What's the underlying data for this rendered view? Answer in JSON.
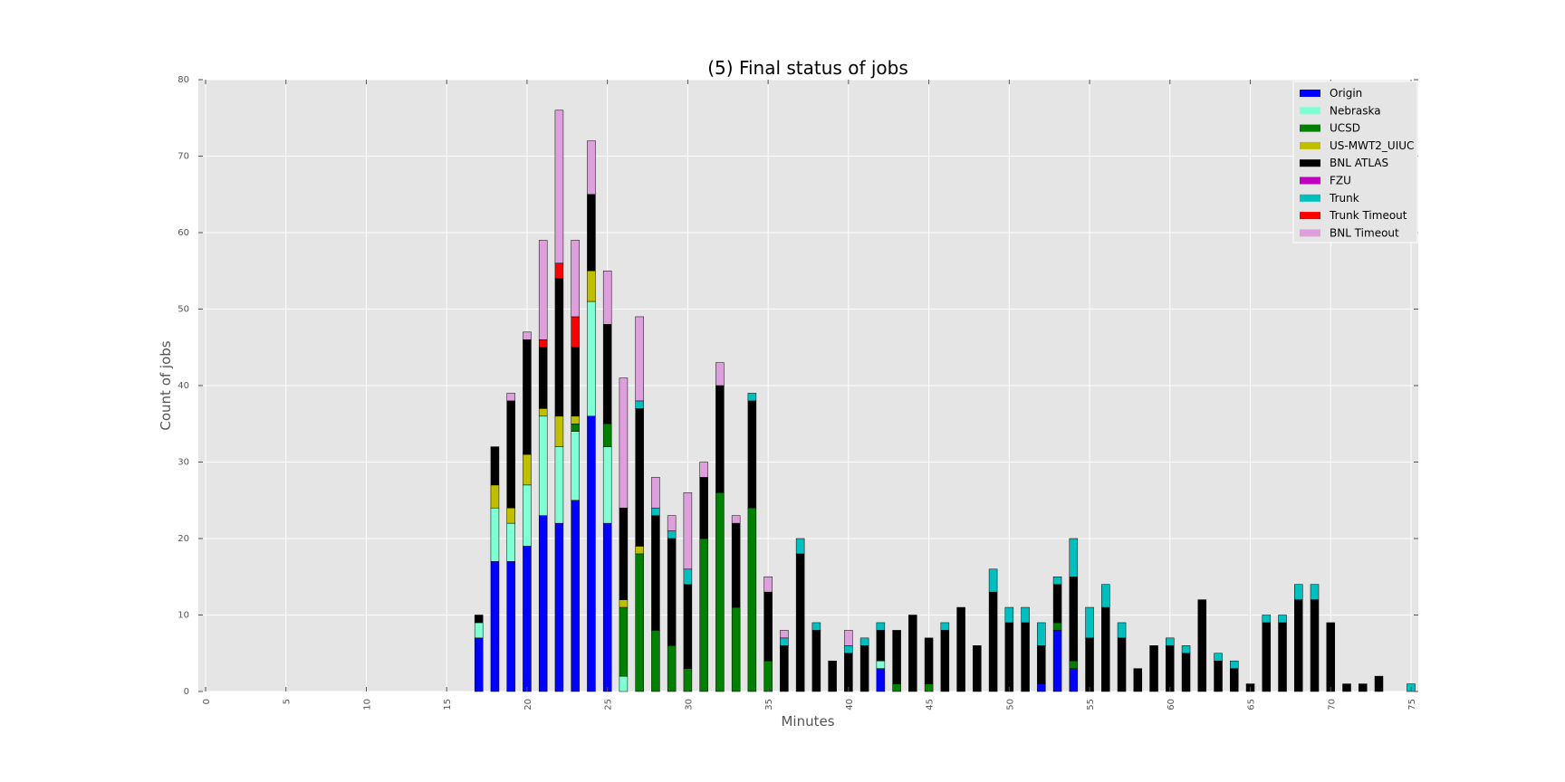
{
  "chart_data": {
    "type": "bar",
    "stacked": true,
    "title": "(5) Final status of jobs",
    "xlabel": "Minutes",
    "ylabel": "Count of jobs",
    "xlim": [
      0,
      75
    ],
    "ylim": [
      0,
      80
    ],
    "xticks": [
      0,
      5,
      10,
      15,
      20,
      25,
      30,
      35,
      40,
      45,
      50,
      55,
      60,
      65,
      70,
      75
    ],
    "yticks": [
      0,
      10,
      20,
      30,
      40,
      50,
      60,
      70,
      80
    ],
    "grid": true,
    "legend_position": "top-right",
    "colors": {
      "background": "#e5e5e5",
      "grid": "#ffffff"
    },
    "x": [
      17,
      18,
      19,
      20,
      21,
      22,
      23,
      24,
      25,
      26,
      27,
      28,
      29,
      30,
      31,
      32,
      33,
      34,
      35,
      36,
      37,
      38,
      39,
      40,
      41,
      42,
      43,
      44,
      45,
      46,
      47,
      48,
      49,
      50,
      51,
      52,
      53,
      54,
      55,
      56,
      57,
      58,
      59,
      60,
      61,
      62,
      63,
      64,
      65,
      66,
      67,
      68,
      69,
      70,
      71,
      72,
      73,
      75
    ],
    "series": [
      {
        "name": "Origin",
        "color": "#0000ff",
        "values": [
          7,
          17,
          17,
          19,
          23,
          22,
          25,
          36,
          22,
          0,
          0,
          0,
          0,
          0,
          0,
          0,
          0,
          0,
          0,
          0,
          0,
          0,
          0,
          0,
          0,
          3,
          0,
          0,
          0,
          0,
          0,
          0,
          0,
          0,
          0,
          1,
          8,
          3,
          0,
          0,
          0,
          0,
          0,
          0,
          0,
          0,
          0,
          0,
          0,
          0,
          0,
          0,
          0,
          0,
          0,
          0,
          0,
          0
        ]
      },
      {
        "name": "Nebraska",
        "color": "#7fffd4",
        "values": [
          2,
          7,
          5,
          8,
          13,
          10,
          9,
          15,
          10,
          2,
          0,
          0,
          0,
          0,
          0,
          0,
          0,
          0,
          0,
          0,
          0,
          0,
          0,
          0,
          0,
          1,
          0,
          0,
          0,
          0,
          0,
          0,
          0,
          0,
          0,
          0,
          0,
          0,
          0,
          0,
          0,
          0,
          0,
          0,
          0,
          0,
          0,
          0,
          0,
          0,
          0,
          0,
          0,
          0,
          0,
          0,
          0,
          0
        ]
      },
      {
        "name": "UCSD",
        "color": "#008000",
        "values": [
          0,
          0,
          0,
          0,
          0,
          0,
          1,
          0,
          3,
          9,
          18,
          8,
          6,
          3,
          20,
          26,
          11,
          24,
          4,
          0,
          0,
          0,
          0,
          0,
          0,
          0,
          1,
          0,
          1,
          0,
          0,
          0,
          0,
          0,
          0,
          0,
          1,
          1,
          0,
          0,
          0,
          0,
          0,
          0,
          0,
          0,
          0,
          0,
          0,
          0,
          0,
          0,
          0,
          0,
          0,
          0,
          0,
          0
        ]
      },
      {
        "name": "US-MWT2_UIUC",
        "color": "#bfbf00",
        "values": [
          0,
          3,
          2,
          4,
          1,
          4,
          1,
          4,
          0,
          1,
          1,
          0,
          0,
          0,
          0,
          0,
          0,
          0,
          0,
          0,
          0,
          0,
          0,
          0,
          0,
          0,
          0,
          0,
          0,
          0,
          0,
          0,
          0,
          0,
          0,
          0,
          0,
          0,
          0,
          0,
          0,
          0,
          0,
          0,
          0,
          0,
          0,
          0,
          0,
          0,
          0,
          0,
          0,
          0,
          0,
          0,
          0,
          0
        ]
      },
      {
        "name": "BNL ATLAS",
        "color": "#000000",
        "values": [
          1,
          5,
          14,
          15,
          8,
          18,
          9,
          10,
          13,
          12,
          18,
          15,
          14,
          11,
          8,
          14,
          11,
          14,
          9,
          6,
          18,
          8,
          4,
          5,
          6,
          4,
          7,
          10,
          6,
          8,
          11,
          6,
          13,
          9,
          9,
          5,
          5,
          11,
          7,
          11,
          7,
          3,
          6,
          6,
          5,
          12,
          4,
          3,
          1,
          9,
          9,
          12,
          12,
          9,
          1,
          1,
          2,
          0
        ]
      },
      {
        "name": "FZU",
        "color": "#bf00bf",
        "values": [
          0,
          0,
          0,
          0,
          0,
          0,
          0,
          0,
          0,
          0,
          0,
          0,
          0,
          0,
          0,
          0,
          0,
          0,
          0,
          0,
          0,
          0,
          0,
          0,
          0,
          0,
          0,
          0,
          0,
          0,
          0,
          0,
          0,
          0,
          0,
          0,
          0,
          0,
          0,
          0,
          0,
          0,
          0,
          0,
          0,
          0,
          0,
          0,
          0,
          0,
          0,
          0,
          0,
          0,
          0,
          0,
          0,
          0
        ]
      },
      {
        "name": "Trunk",
        "color": "#00bfbf",
        "values": [
          0,
          0,
          0,
          0,
          0,
          0,
          0,
          0,
          0,
          0,
          1,
          1,
          1,
          2,
          0,
          0,
          0,
          1,
          0,
          1,
          2,
          1,
          0,
          1,
          1,
          1,
          0,
          0,
          0,
          1,
          0,
          0,
          3,
          2,
          2,
          3,
          1,
          5,
          4,
          3,
          2,
          0,
          0,
          1,
          1,
          0,
          1,
          1,
          0,
          1,
          1,
          2,
          2,
          0,
          0,
          0,
          0,
          1
        ]
      },
      {
        "name": "Trunk Timeout",
        "color": "#ff0000",
        "values": [
          0,
          0,
          0,
          0,
          1,
          2,
          4,
          0,
          0,
          0,
          0,
          0,
          0,
          0,
          0,
          0,
          0,
          0,
          0,
          0,
          0,
          0,
          0,
          0,
          0,
          0,
          0,
          0,
          0,
          0,
          0,
          0,
          0,
          0,
          0,
          0,
          0,
          0,
          0,
          0,
          0,
          0,
          0,
          0,
          0,
          0,
          0,
          0,
          0,
          0,
          0,
          0,
          0,
          0,
          0,
          0,
          0,
          0
        ]
      },
      {
        "name": "BNL Timeout",
        "color": "#dda0dd",
        "values": [
          0,
          0,
          1,
          1,
          13,
          20,
          10,
          7,
          7,
          17,
          11,
          4,
          2,
          10,
          2,
          3,
          1,
          0,
          2,
          1,
          0,
          0,
          0,
          2,
          0,
          0,
          0,
          0,
          0,
          0,
          0,
          0,
          0,
          0,
          0,
          0,
          0,
          0,
          0,
          0,
          0,
          0,
          0,
          0,
          0,
          0,
          0,
          0,
          0,
          0,
          0,
          0,
          0,
          0,
          0,
          0,
          0,
          0
        ]
      }
    ]
  }
}
